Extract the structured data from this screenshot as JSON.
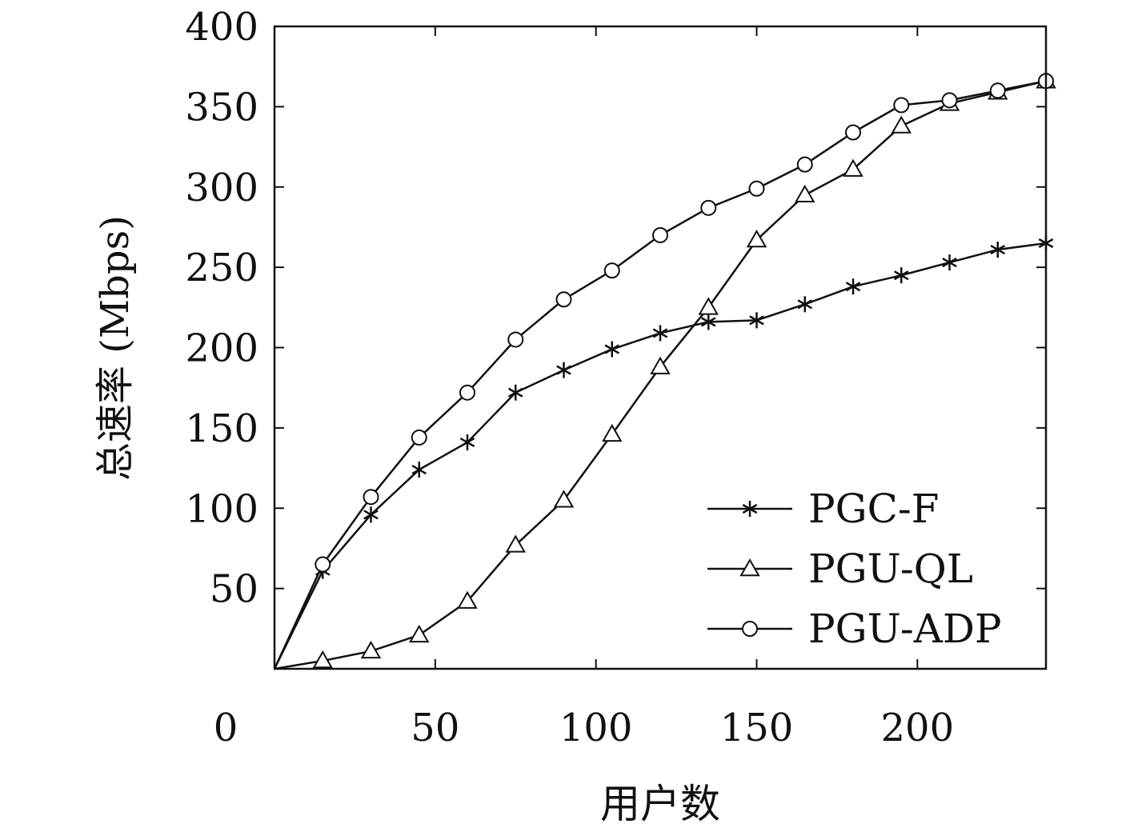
{
  "chart_data": {
    "type": "line",
    "title": "",
    "xlabel": "用户数",
    "ylabel": "总速率 (Mbps)",
    "xlim": [
      0,
      240
    ],
    "ylim": [
      0,
      400
    ],
    "x_ticks": [
      50,
      100,
      150,
      200
    ],
    "x_origin_label": "0",
    "y_ticks": [
      50,
      100,
      150,
      200,
      250,
      300,
      350,
      400
    ],
    "grid": false,
    "legend_position": "bottom-right",
    "x": [
      0,
      15,
      30,
      45,
      60,
      75,
      90,
      105,
      120,
      135,
      150,
      165,
      180,
      195,
      210,
      225,
      240
    ],
    "series": [
      {
        "name": "PGC-F",
        "marker": "asterisk",
        "values": [
          0,
          61,
          96,
          124,
          141,
          172,
          186,
          199,
          209,
          216,
          217,
          227,
          238,
          245,
          253,
          261,
          265
        ]
      },
      {
        "name": "PGU-QL",
        "marker": "triangle",
        "values": [
          0,
          5,
          11,
          21,
          42,
          77,
          105,
          146,
          188,
          225,
          267,
          295,
          311,
          338,
          352,
          359,
          366
        ]
      },
      {
        "name": "PGU-ADP",
        "marker": "circle",
        "values": [
          0,
          65,
          107,
          144,
          172,
          205,
          230,
          248,
          270,
          287,
          299,
          314,
          334,
          351,
          354,
          360,
          366
        ]
      }
    ],
    "colors": {
      "line": "#111111",
      "marker_fill": "#ffffff"
    }
  }
}
